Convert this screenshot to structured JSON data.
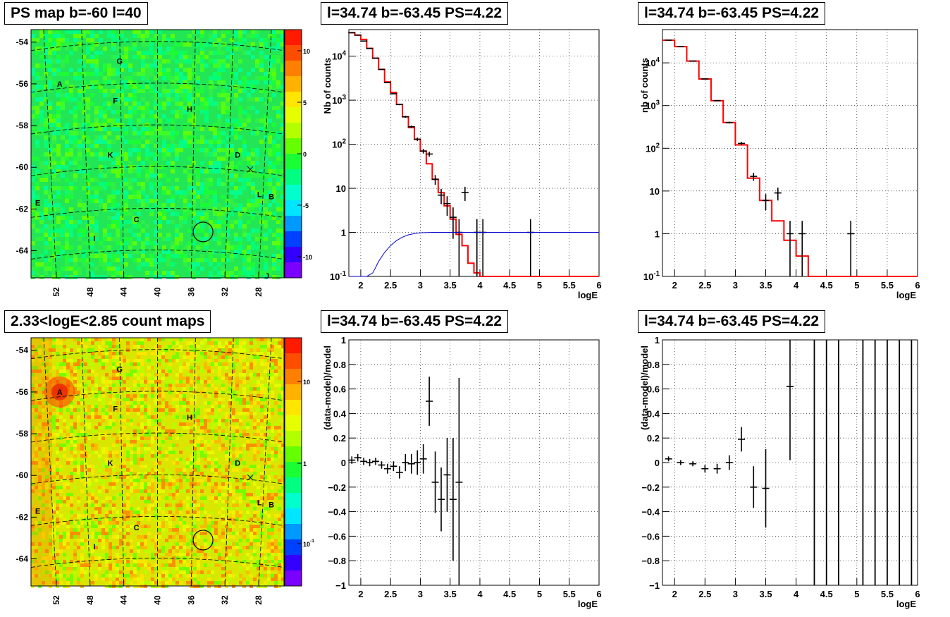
{
  "panels": [
    {
      "id": "ps_map",
      "title": "PS map b=-60 l=40",
      "kind": "skymap",
      "y_ticks": [
        "-54",
        "-56",
        "-58",
        "-60",
        "-62",
        "-64"
      ],
      "x_ticks": [
        "52",
        "48",
        "44",
        "40",
        "36",
        "32",
        "28"
      ],
      "source_labels": [
        {
          "t": "G",
          "l": 44.5,
          "b": -54.9
        },
        {
          "t": "A",
          "l": 51.6,
          "b": -56.0
        },
        {
          "t": "F",
          "l": 45.0,
          "b": -56.8
        },
        {
          "t": "H",
          "l": 36.2,
          "b": -57.2
        },
        {
          "t": "K",
          "l": 45.6,
          "b": -59.4
        },
        {
          "t": "D",
          "l": 30.5,
          "b": -59.4
        },
        {
          "t": "L",
          "l": 27.9,
          "b": -61.3
        },
        {
          "t": "B",
          "l": 26.5,
          "b": -61.4
        },
        {
          "t": "E",
          "l": 54.2,
          "b": -61.7
        },
        {
          "t": "C",
          "l": 42.5,
          "b": -62.5
        },
        {
          "t": "I",
          "l": 47.5,
          "b": -63.4
        },
        {
          "t": "J",
          "l": 27.0,
          "b": -65.2
        }
      ],
      "colorbar": {
        "ticks": [
          "10",
          "5",
          "0",
          "-5",
          "-10"
        ],
        "colors": [
          "#ff1a00",
          "#ff4d00",
          "#ff8000",
          "#ffb300",
          "#ffe600",
          "#e6ff00",
          "#b3ff00",
          "#66ff00",
          "#1aff33",
          "#00ff80",
          "#00ffcc",
          "#00e6ff",
          "#0099ff",
          "#0040ff",
          "#3300ff",
          "#7a00ff"
        ]
      },
      "map_base_color": "#22e655"
    },
    {
      "id": "spec_fine",
      "title": "l=34.74 b=-63.45 PS=4.22",
      "kind": "spectrum",
      "ylabel": "Nb of counts",
      "xlabel": "logE",
      "x_ticks": [
        "2",
        "2.5",
        "3",
        "3.5",
        "4",
        "4.5",
        "5",
        "5.5",
        "6"
      ],
      "y_ticks": [
        "10^4",
        "10^3",
        "10^2",
        "10",
        "1",
        "10^-1"
      ],
      "chart_data": {
        "type": "line",
        "xlim": [
          1.8,
          6.0
        ],
        "ylim": [
          0.1,
          40000
        ],
        "ylog": true,
        "series": [
          {
            "values_hist_model_edges": [
              1.8,
              1.9,
              2.0,
              2.1,
              2.2,
              2.3,
              2.4,
              2.5,
              2.6,
              2.7,
              2.8,
              2.9,
              3.0,
              3.1,
              3.2,
              3.3,
              3.4,
              3.5,
              3.6,
              3.7,
              3.8,
              3.9,
              4.0,
              4.1,
              6.0
            ],
            "model": [
              34000,
              30000,
              24000,
              15000,
              9000,
              5000,
              2600,
              1500,
              800,
              420,
              240,
              130,
              70,
              36,
              16,
              8,
              4,
              2,
              0.9,
              0.5,
              0.2,
              0.12,
              0.1,
              0.1
            ],
            "color": "#ff0000"
          },
          {
            "data_x": [
              1.85,
              1.95,
              2.05,
              2.15,
              2.25,
              2.35,
              2.45,
              2.55,
              2.65,
              2.75,
              2.85,
              2.95,
              3.05,
              3.15,
              3.25,
              3.35,
              3.45,
              3.55,
              3.65,
              3.75,
              3.95,
              4.05,
              4.85
            ],
            "data_y": [
              34000,
              30000,
              22000,
              15000,
              9000,
              5000,
              2500,
              1400,
              800,
              420,
              250,
              130,
              70,
              60,
              16,
              7,
              4.5,
              2.2,
              1,
              8,
              1,
              1,
              1
            ],
            "color": "#000000"
          },
          {
            "curve_x": [
              1.8,
              2.0,
              2.1,
              2.2,
              2.25,
              2.3,
              2.4,
              2.5,
              2.6,
              2.7,
              2.8,
              2.9,
              3.0,
              3.2,
              3.5,
              6.0
            ],
            "curve_y": [
              0.02,
              0.05,
              0.08,
              0.12,
              0.16,
              0.22,
              0.35,
              0.5,
              0.65,
              0.78,
              0.88,
              0.94,
              0.98,
              1.0,
              1.0,
              1.0
            ],
            "color": "#0000cc"
          }
        ]
      }
    },
    {
      "id": "spec_coarse",
      "title": "l=34.74 b=-63.45 PS=4.22",
      "kind": "spectrum",
      "ylabel": "nb of counts",
      "xlabel": "logE",
      "x_ticks": [
        "2",
        "2.5",
        "3",
        "3.5",
        "4",
        "4.5",
        "5",
        "5.5",
        "6"
      ],
      "y_ticks": [
        "10^4",
        "10^3",
        "10^2",
        "10",
        "1",
        "10^-1"
      ],
      "chart_data": {
        "type": "line",
        "xlim": [
          1.8,
          6.0
        ],
        "ylim": [
          0.1,
          60000
        ],
        "ylog": true,
        "series": [
          {
            "values_hist_model_edges": [
              1.8,
              2.0,
              2.2,
              2.4,
              2.6,
              2.8,
              3.0,
              3.2,
              3.4,
              3.6,
              3.8,
              4.0,
              4.2,
              6.0
            ],
            "model": [
              34000,
              24000,
              11000,
              4200,
              1300,
              400,
              120,
              20,
              6,
              2,
              0.7,
              0.3,
              0.1
            ],
            "color": "#ff0000"
          },
          {
            "data_x": [
              1.9,
              2.1,
              2.3,
              2.5,
              2.7,
              2.9,
              3.1,
              3.3,
              3.5,
              3.7,
              3.9,
              4.1,
              4.9
            ],
            "data_y": [
              34000,
              24000,
              11000,
              4200,
              1300,
              400,
              130,
              22,
              6,
              9,
              1,
              1,
              1
            ],
            "color": "#000000"
          }
        ]
      }
    },
    {
      "id": "count_map",
      "title": "2.33<logE<2.85 count maps",
      "kind": "skymap",
      "y_ticks": [
        "-54",
        "-56",
        "-58",
        "-60",
        "-62",
        "-64"
      ],
      "x_ticks": [
        "52",
        "48",
        "44",
        "40",
        "36",
        "32",
        "28"
      ],
      "source_labels": [
        {
          "t": "G",
          "l": 44.5,
          "b": -54.9
        },
        {
          "t": "A",
          "l": 51.6,
          "b": -56.0
        },
        {
          "t": "F",
          "l": 45.0,
          "b": -56.8
        },
        {
          "t": "H",
          "l": 36.2,
          "b": -57.2
        },
        {
          "t": "K",
          "l": 45.6,
          "b": -59.4
        },
        {
          "t": "D",
          "l": 30.5,
          "b": -59.4
        },
        {
          "t": "L",
          "l": 27.9,
          "b": -61.3
        },
        {
          "t": "B",
          "l": 26.5,
          "b": -61.4
        },
        {
          "t": "E",
          "l": 54.2,
          "b": -61.7
        },
        {
          "t": "C",
          "l": 42.5,
          "b": -62.5
        },
        {
          "t": "I",
          "l": 47.5,
          "b": -63.4
        }
      ],
      "colorbar": {
        "ticks": [
          "10",
          "1",
          "10^-1"
        ],
        "colors": [
          "#ff1a00",
          "#ff4d00",
          "#ff8000",
          "#ffb300",
          "#ffe600",
          "#e6ff00",
          "#b3ff00",
          "#66ff00",
          "#1aff33",
          "#00ff80",
          "#00ffcc",
          "#00e6ff",
          "#0099ff",
          "#0040ff",
          "#3300ff",
          "#7a00ff"
        ]
      },
      "map_base_color": "#d9e600"
    },
    {
      "id": "resid_fine",
      "title": "l=34.74 b=-63.45 PS=4.22",
      "kind": "residual",
      "ylabel": "(data-model)/model",
      "xlabel": "logE",
      "x_ticks": [
        "2",
        "2.5",
        "3",
        "3.5",
        "4",
        "4.5",
        "5",
        "5.5",
        "6"
      ],
      "y_ticks": [
        "1",
        "0.8",
        "0.6",
        "0.4",
        "0.2",
        "0",
        "-0.2",
        "-0.4",
        "-0.6",
        "-0.8",
        "-1"
      ],
      "chart_data": {
        "type": "scatter",
        "xlim": [
          1.8,
          6.0
        ],
        "ylim": [
          -1,
          1
        ],
        "x": [
          1.85,
          1.95,
          2.05,
          2.15,
          2.25,
          2.35,
          2.45,
          2.55,
          2.65,
          2.75,
          2.85,
          2.95,
          3.05,
          3.15,
          3.25,
          3.35,
          3.45,
          3.55,
          3.65
        ],
        "y": [
          0.02,
          0.04,
          0.01,
          0.0,
          0.01,
          -0.02,
          -0.05,
          -0.03,
          -0.08,
          0.0,
          -0.01,
          0.0,
          0.03,
          0.5,
          -0.16,
          -0.3,
          -0.1,
          -0.3,
          -0.16
        ],
        "yerr": [
          0.03,
          0.03,
          0.03,
          0.03,
          0.03,
          0.03,
          0.04,
          0.04,
          0.05,
          0.07,
          0.08,
          0.1,
          0.12,
          0.2,
          0.25,
          0.26,
          0.3,
          0.5,
          0.85
        ]
      }
    },
    {
      "id": "resid_coarse",
      "title": "l=34.74 b=-63.45 PS=4.22",
      "kind": "residual",
      "ylabel": "(data-model)/model",
      "xlabel": "logE",
      "x_ticks": [
        "2",
        "2.5",
        "3",
        "3.5",
        "4",
        "4.5",
        "5",
        "5.5",
        "6"
      ],
      "y_ticks": [
        "1",
        "0.8",
        "0.6",
        "0.4",
        "0.2",
        "0",
        "-0.2",
        "-0.4",
        "-0.6",
        "-0.8",
        "-1"
      ],
      "chart_data": {
        "type": "scatter",
        "xlim": [
          1.8,
          6.0
        ],
        "ylim": [
          -1,
          1
        ],
        "x": [
          1.9,
          2.1,
          2.3,
          2.5,
          2.7,
          2.9,
          3.1,
          3.3,
          3.5,
          3.9
        ],
        "y": [
          0.03,
          0.0,
          -0.01,
          -0.05,
          -0.05,
          0.0,
          0.19,
          -0.2,
          -0.21,
          0.62
        ],
        "yerr": [
          0.02,
          0.02,
          0.02,
          0.03,
          0.04,
          0.06,
          0.1,
          0.17,
          0.32,
          0.6
        ],
        "full_bars_x": [
          4.3,
          4.5,
          4.7,
          5.1,
          5.3,
          5.5,
          5.7,
          5.9
        ]
      }
    }
  ]
}
